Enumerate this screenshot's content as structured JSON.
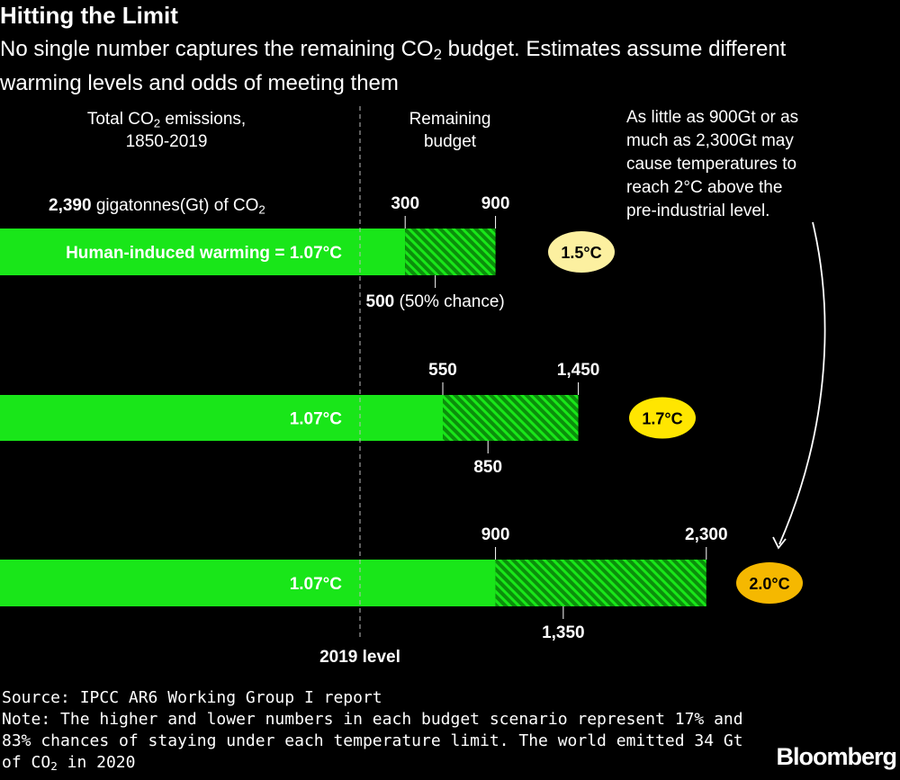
{
  "header": {
    "title": "Hitting the Limit",
    "subtitle_part1": "No single number captures the remaining CO",
    "subtitle_sub": "2",
    "subtitle_part2": " budget. Estimates assume different warming levels and odds of meeting them"
  },
  "column_headers": {
    "left_line1_pre": "Total CO",
    "left_line1_sub": "2",
    "left_line1_post": " emissions,",
    "left_line2": "1850-2019",
    "middle_line1": "Remaining",
    "middle_line2": "budget"
  },
  "emissions_label": {
    "value": "2,390",
    "text": " gigatonnes(Gt) of CO",
    "sub": "2"
  },
  "callout": [
    "As little as 900Gt or as",
    "much as 2,300Gt may",
    "cause temperatures to",
    "reach 2°C above the",
    "pre-industrial level."
  ],
  "baseline_label": "2019 level",
  "footer": {
    "source": "Source: IPCC AR6 Working Group I report",
    "note_line1": "Note: The higher and lower numbers in each budget scenario represent 17% and",
    "note_line2": "83% chances of staying under each temperature limit. The world emitted 34 Gt",
    "note_line3_pre": "of CO",
    "note_line3_sub": "2",
    "note_line3_post": " in 2020"
  },
  "logo": "Bloomberg",
  "colors": {
    "historic": "#19e619",
    "budget": "#19e619",
    "hatch_bg": "#0b8f0b",
    "badge_1_5": "#fcf0a0",
    "badge_1_7": "#ffe600",
    "badge_2_0": "#f5b800"
  },
  "chart_data": {
    "type": "bar",
    "title": "Hitting the Limit",
    "unit": "Gt CO2",
    "historic_emissions": 2390,
    "historic_label_first": "Human-induced warming = 1.07°C",
    "historic_label": "1.07°C",
    "scenarios": [
      {
        "temperature": "1.5°C",
        "low": 300,
        "high": 900,
        "median": 500,
        "low_label": "300",
        "high_label": "900",
        "median_label": "500",
        "median_note": " (50% chance)"
      },
      {
        "temperature": "1.7°C",
        "low": 550,
        "high": 1450,
        "median": 850,
        "low_label": "550",
        "high_label": "1,450",
        "median_label": "850",
        "median_note": ""
      },
      {
        "temperature": "2.0°C",
        "low": 900,
        "high": 2300,
        "median": 1350,
        "low_label": "900",
        "high_label": "2,300",
        "median_label": "1,350",
        "median_note": ""
      }
    ]
  }
}
